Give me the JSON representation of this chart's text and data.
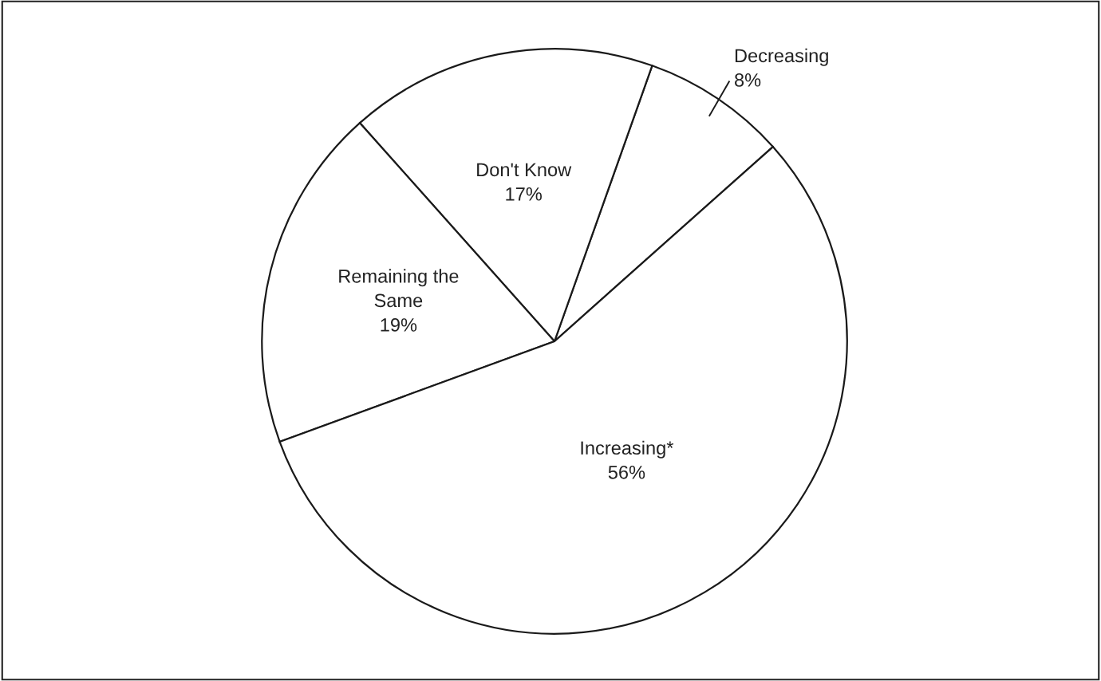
{
  "chart_data": {
    "type": "pie",
    "categories": [
      "Decreasing",
      "Don't Know",
      "Remaining the\nSame",
      "Increasing*"
    ],
    "values": [
      8,
      17,
      19,
      56
    ],
    "colors": [
      "#ffffff",
      "#ffffff",
      "#ffffff",
      "#ffffff"
    ],
    "value_labels": [
      "8%",
      "17%",
      "19%",
      "56%"
    ],
    "legend": false
  }
}
